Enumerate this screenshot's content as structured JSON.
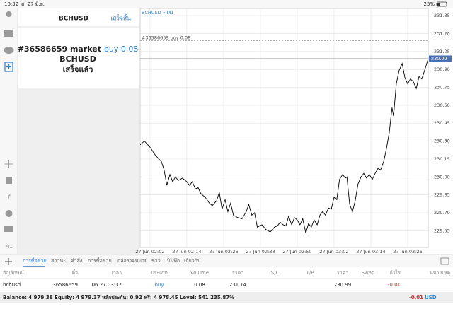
{
  "status_bar": {
    "time": "10:32",
    "date": "ส. 27 มิ.ย.",
    "battery": "23%"
  },
  "sidebar": {
    "timeframe": "M1"
  },
  "order_panel": {
    "symbol": "BCHUSD",
    "done_button": "เสร็จสิ้น",
    "order_id": "#36586659 market",
    "order_action": "buy 0.08",
    "order_symbol": "BCHUSD",
    "status": "เสร็จแล้ว"
  },
  "chart_data": {
    "type": "line",
    "title": "BCHUSD • M1",
    "color": "#000000",
    "grid": true,
    "x": [
      -1.2,
      0.2,
      2.0,
      3.8,
      5.7,
      6.6,
      7.5,
      8.5,
      9.4,
      10.3,
      11.2,
      12.6,
      14.0,
      14.9,
      15.8,
      16.8,
      17.7,
      18.6,
      20.0,
      21.4,
      22.3,
      23.7,
      24.6,
      25.5,
      26.5,
      27.4,
      28.3,
      29.2,
      30.6,
      32.0,
      33.4,
      34.2,
      35.2,
      36.1,
      37.0,
      38.5,
      39.8,
      41.2,
      42.6,
      43.5,
      44.5,
      45.4,
      46.3,
      47.2,
      48.2,
      49.1,
      50.0,
      50.9,
      51.8,
      52.8,
      53.7,
      54.6,
      55.5,
      56.5,
      57.4,
      58.3,
      59.2,
      60.2,
      61.1,
      62.0,
      62.9,
      63.8,
      64.8,
      65.7,
      66.2,
      67.1,
      68.0,
      68.9,
      69.8,
      70.8,
      71.7,
      72.6,
      73.5,
      74.5,
      75.4,
      76.3,
      77.2,
      78.2,
      79.1,
      80.0,
      80.9,
      81.4,
      82.3,
      83.2,
      84.2,
      85.1,
      86.0,
      86.9,
      87.8,
      88.8,
      89.7,
      90.6,
      91.5,
      92.7
    ],
    "values": [
      230.27,
      230.3,
      230.25,
      230.18,
      230.13,
      230.06,
      229.93,
      230.02,
      229.96,
      230.0,
      229.97,
      229.99,
      229.96,
      229.93,
      229.96,
      229.9,
      229.91,
      229.86,
      229.83,
      229.78,
      229.76,
      229.8,
      229.87,
      229.73,
      229.81,
      229.71,
      229.78,
      229.68,
      229.66,
      229.65,
      229.71,
      229.77,
      229.68,
      229.7,
      229.58,
      229.6,
      229.56,
      229.54,
      229.58,
      229.59,
      229.62,
      229.6,
      229.59,
      229.67,
      229.6,
      229.66,
      229.64,
      229.6,
      229.65,
      229.53,
      229.61,
      229.58,
      229.64,
      229.6,
      229.68,
      229.71,
      229.68,
      229.74,
      229.73,
      229.83,
      229.81,
      229.98,
      230.02,
      229.99,
      230.0,
      229.77,
      229.71,
      229.8,
      229.94,
      230.0,
      230.03,
      229.99,
      230.02,
      229.98,
      230.03,
      230.07,
      230.06,
      230.13,
      230.24,
      230.37,
      230.58,
      230.51,
      230.78,
      230.89,
      230.95,
      230.83,
      230.78,
      230.82,
      230.8,
      230.74,
      230.84,
      230.82,
      230.89,
      230.99
    ],
    "xlim": [
      -1.2,
      92.7
    ],
    "ylim": [
      229.41,
      231.41
    ],
    "xticks": [
      {
        "value": 2,
        "label": "27 Jun 02:02"
      },
      {
        "value": 14,
        "label": "27 Jun 02:14"
      },
      {
        "value": 26,
        "label": "27 Jun 02:26"
      },
      {
        "value": 38,
        "label": "27 Jun 02:38"
      },
      {
        "value": 50,
        "label": "27 Jun 02:50"
      },
      {
        "value": 62,
        "label": "27 Jun 03:02"
      },
      {
        "value": 74,
        "label": "27 Jun 03:14"
      },
      {
        "value": 86,
        "label": "27 Jun 03:26"
      }
    ],
    "yticks": [
      231.35,
      {
        "value": 231.2,
        "label": "231.20"
      },
      231.05,
      {
        "value": 230.9,
        "label": "230.90"
      },
      230.75,
      {
        "value": 230.6,
        "label": "230.60"
      },
      230.45,
      {
        "value": 230.3,
        "label": "230.30"
      },
      230.15,
      {
        "value": 230.0,
        "label": "230.00"
      },
      229.85,
      {
        "value": 229.7,
        "label": "229.70"
      },
      229.55
    ],
    "order_line": {
      "label": "#36586659 buy 0.08",
      "price": 231.14
    },
    "current_price": 230.99
  },
  "tabs": [
    "การซื้อขาย",
    "สถานะ",
    "คำสั่ง",
    "การซื้อขาย",
    "กล่องจดหมาย",
    "ข่าว",
    "บันทึก",
    "เกี่ยวกับ"
  ],
  "table": {
    "header": [
      "สัญลักษณ์",
      "ตั๋ว",
      "เวลา",
      "ประเภท",
      "Volume",
      "ราคา",
      "S/L",
      "T/P",
      "ราคา",
      "Swap",
      "กำไร",
      "หมายเหตุ"
    ],
    "rows": [
      [
        "bchusd",
        "36586659",
        "06.27 03:32",
        "buy",
        "0.08",
        "231.14",
        null,
        null,
        "230.99",
        null,
        "-0.01",
        null
      ]
    ]
  },
  "footer": {
    "summary": "Balance: 4 979.38 Equity: 4 979.37 หลักประกัน: 0.92 ฟรี: 4 978.45 Level: 541 235.87%",
    "profit": "-0.01",
    "currency": "USD"
  }
}
